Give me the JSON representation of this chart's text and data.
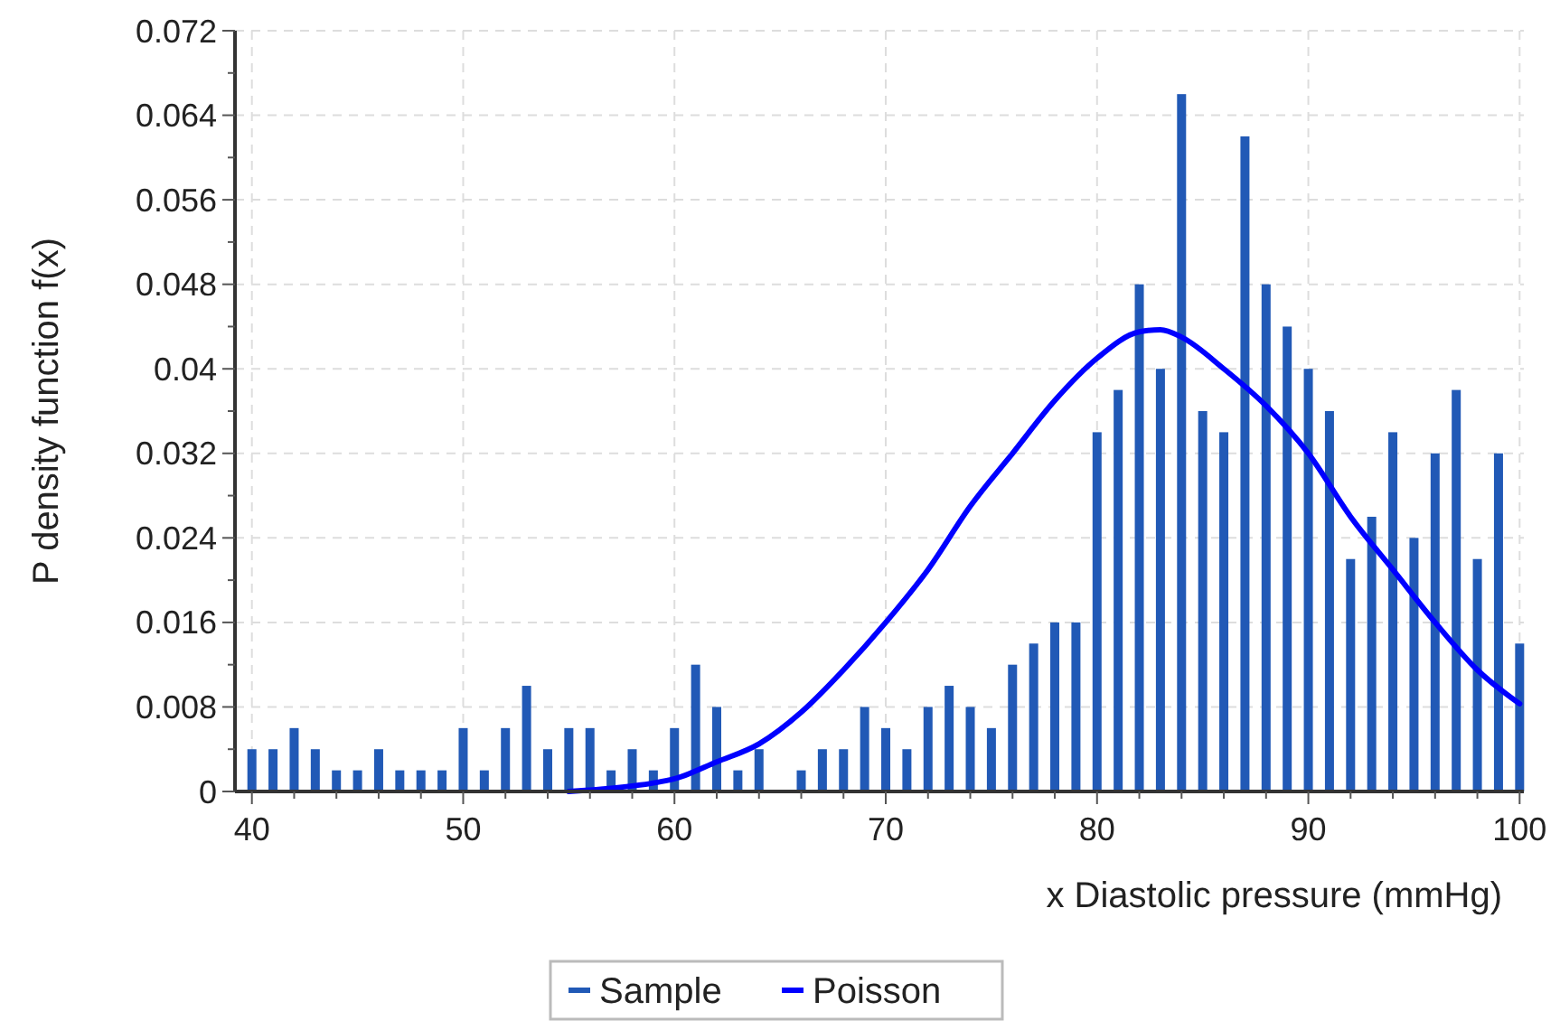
{
  "chart_data": {
    "type": "bar",
    "xlabel": "x Diastolic pressure (mmHg)",
    "ylabel": "P density function f(x)",
    "xlim": [
      39.2,
      100.2
    ],
    "xticks": [
      40,
      50,
      60,
      70,
      80,
      90,
      100
    ],
    "ylim": [
      0,
      0.072
    ],
    "yticks": [
      0,
      0.008,
      0.016,
      0.024,
      0.032,
      0.04,
      0.048,
      0.056,
      0.064,
      0.072
    ],
    "grid": true,
    "legend": "bottom",
    "series": [
      {
        "name": "Sample",
        "color": "#2159b6",
        "x": [
          40,
          41,
          42,
          43,
          44,
          45,
          46,
          47,
          48,
          49,
          50,
          51,
          52,
          53,
          54,
          55,
          56,
          57,
          58,
          59,
          60,
          61,
          62,
          63,
          64,
          66,
          67,
          68,
          69,
          70,
          71,
          72,
          73,
          74,
          75,
          76,
          77,
          78,
          79,
          80,
          81,
          82,
          83,
          84,
          85,
          86,
          87,
          88,
          89,
          90,
          91,
          92,
          93,
          94,
          95,
          96,
          97,
          98,
          99,
          100
        ],
        "values": [
          0.004,
          0.004,
          0.006,
          0.004,
          0.002,
          0.002,
          0.004,
          0.002,
          0.002,
          0.002,
          0.006,
          0.002,
          0.006,
          0.01,
          0.004,
          0.006,
          0.006,
          0.002,
          0.004,
          0.002,
          0.006,
          0.012,
          0.008,
          0.002,
          0.004,
          0.002,
          0.004,
          0.004,
          0.008,
          0.006,
          0.004,
          0.008,
          0.01,
          0.008,
          0.006,
          0.012,
          0.014,
          0.016,
          0.016,
          0.034,
          0.038,
          0.048,
          0.04,
          0.066,
          0.036,
          0.034,
          0.062,
          0.048,
          0.044,
          0.04,
          0.036,
          0.022,
          0.026,
          0.034,
          0.024,
          0.032,
          0.038,
          0.022,
          0.032,
          0.014
        ]
      },
      {
        "name": "Poisson",
        "type": "line",
        "color": "#0000ff",
        "x": [
          55,
          57,
          59,
          60,
          62,
          64,
          66,
          68,
          70,
          72,
          74,
          76,
          78,
          80,
          82,
          83,
          84,
          86,
          88,
          90,
          92,
          94,
          96,
          98,
          100
        ],
        "values": [
          0,
          0.0003,
          0.0008,
          0.0012,
          0.0028,
          0.0045,
          0.0075,
          0.0115,
          0.016,
          0.021,
          0.027,
          0.032,
          0.037,
          0.041,
          0.0435,
          0.0437,
          0.043,
          0.04,
          0.0365,
          0.032,
          0.026,
          0.021,
          0.016,
          0.0115,
          0.0083
        ]
      }
    ]
  }
}
